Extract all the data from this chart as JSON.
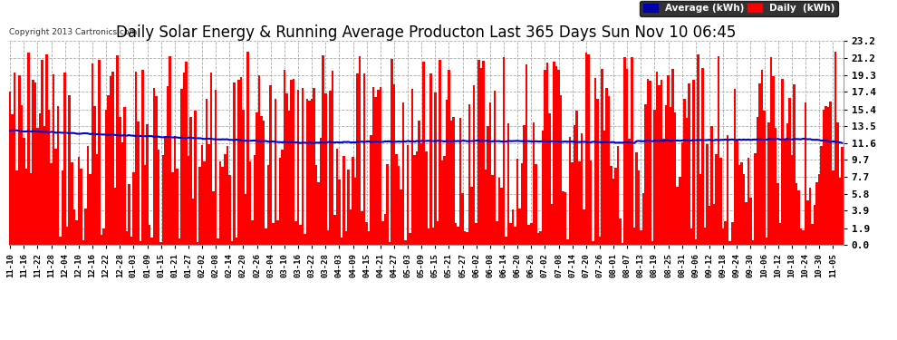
{
  "title": "Daily Solar Energy & Running Average Producton Last 365 Days Sun Nov 10 06:45",
  "copyright": "Copyright 2013 Cartronics.com",
  "yticks": [
    0.0,
    1.9,
    3.9,
    5.8,
    7.7,
    9.7,
    11.6,
    13.5,
    15.4,
    17.4,
    19.3,
    21.2,
    23.2
  ],
  "ymax": 23.2,
  "bar_color": "#ff0000",
  "avg_color": "#0000cc",
  "legend_avg_color": "#0000aa",
  "legend_daily_color": "#ff0000",
  "background_color": "#ffffff",
  "grid_color": "#aaaaaa",
  "title_fontsize": 12,
  "n_bars": 365,
  "x_tick_labels": [
    "11-10",
    "11-16",
    "11-22",
    "11-28",
    "12-04",
    "12-10",
    "12-16",
    "12-22",
    "12-28",
    "01-03",
    "01-09",
    "01-15",
    "01-21",
    "01-27",
    "02-02",
    "02-08",
    "02-14",
    "02-20",
    "02-26",
    "03-04",
    "03-10",
    "03-16",
    "03-22",
    "03-28",
    "04-03",
    "04-09",
    "04-15",
    "04-21",
    "04-27",
    "05-03",
    "05-09",
    "05-15",
    "05-21",
    "05-27",
    "06-02",
    "06-08",
    "06-14",
    "06-20",
    "06-26",
    "07-02",
    "07-08",
    "07-14",
    "07-20",
    "07-26",
    "08-01",
    "08-07",
    "08-13",
    "08-19",
    "08-25",
    "08-31",
    "09-06",
    "09-12",
    "09-18",
    "09-24",
    "09-30",
    "10-06",
    "10-12",
    "10-18",
    "10-24",
    "10-30",
    "11-05"
  ],
  "x_tick_positions": [
    0,
    6,
    12,
    18,
    24,
    30,
    36,
    42,
    48,
    54,
    60,
    66,
    72,
    78,
    84,
    90,
    96,
    102,
    108,
    114,
    120,
    126,
    132,
    138,
    144,
    150,
    156,
    162,
    168,
    174,
    180,
    186,
    192,
    198,
    204,
    210,
    216,
    222,
    228,
    234,
    240,
    246,
    252,
    258,
    264,
    270,
    276,
    282,
    288,
    294,
    300,
    306,
    312,
    318,
    324,
    330,
    336,
    342,
    348,
    354,
    360
  ]
}
